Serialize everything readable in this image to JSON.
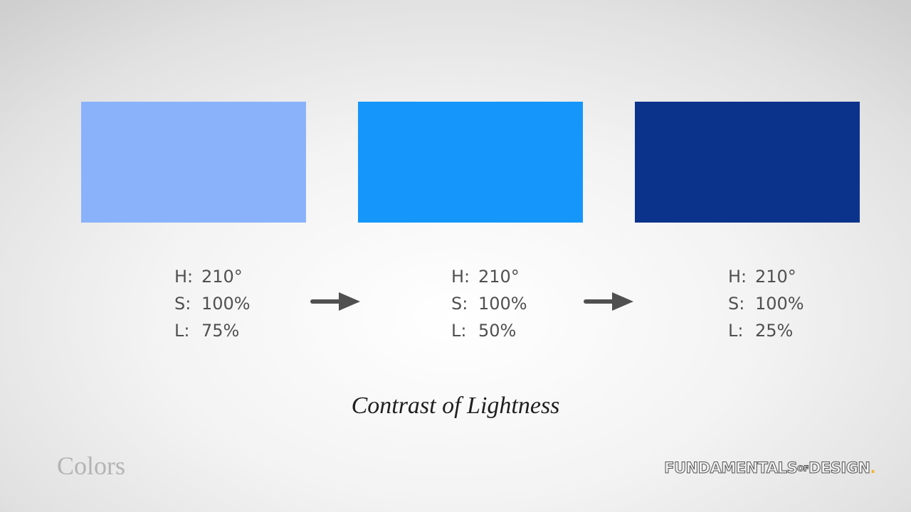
{
  "swatches": [
    {
      "color": "#8ab2fb",
      "h": "210°",
      "s": "100%",
      "l": "75%"
    },
    {
      "color": "#1496fb",
      "h": "210°",
      "s": "100%",
      "l": "50%"
    },
    {
      "color": "#0c338c",
      "h": "210°",
      "s": "100%",
      "l": "25%"
    }
  ],
  "labels": {
    "h": "H:",
    "s": "S:",
    "l": "L:"
  },
  "caption": "Contrast of Lightness",
  "section_label": "Colors",
  "brand": {
    "part1": "FUNDAMENTALS",
    "part2": "OF",
    "part3": "DESIGN",
    "dot": "."
  }
}
